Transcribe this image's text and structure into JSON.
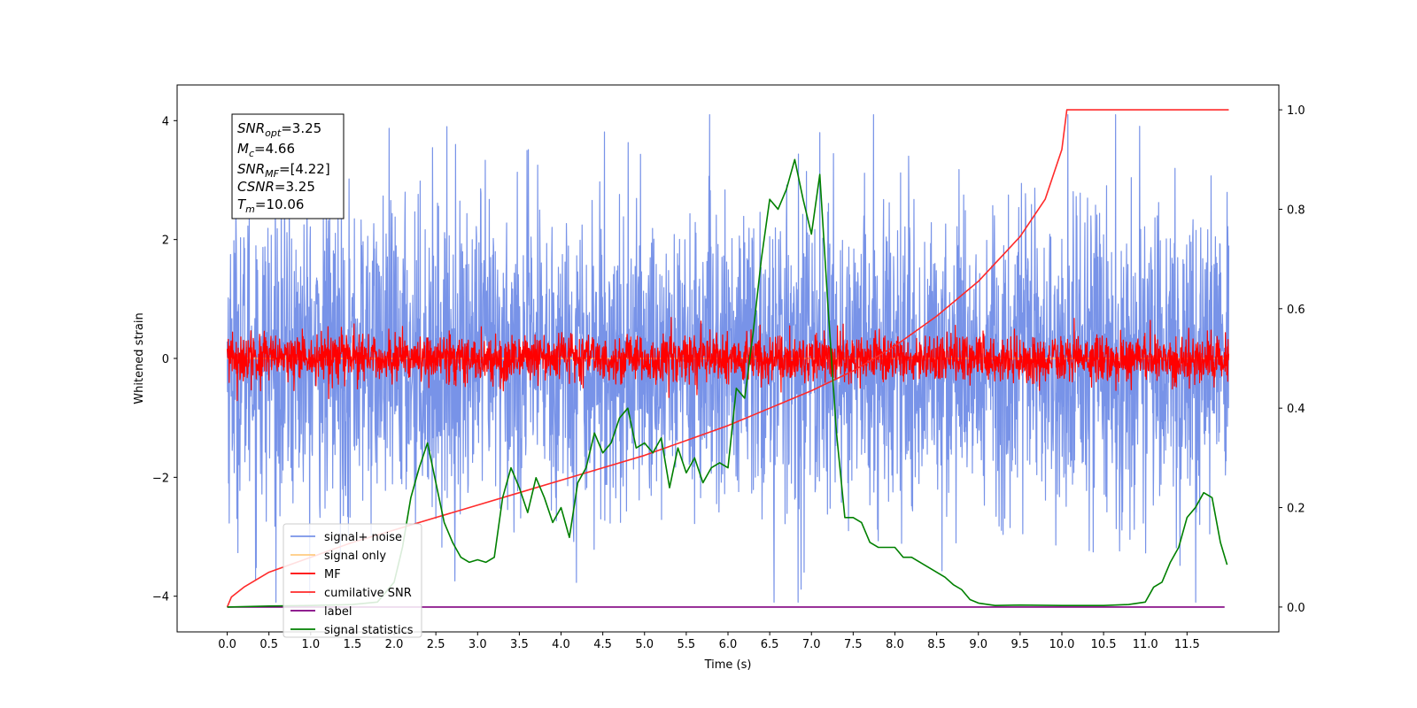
{
  "chart_data": {
    "type": "line",
    "title": "",
    "xlabel": "Time (s)",
    "ylabel": "Whitened strain",
    "xlim": [
      -0.6,
      12.6
    ],
    "ylim": [
      -4.6,
      4.6
    ],
    "y2lim": [
      -0.05,
      1.05
    ],
    "x_ticks": [
      0.0,
      0.5,
      1.0,
      1.5,
      2.0,
      2.5,
      3.0,
      3.5,
      4.0,
      4.5,
      5.0,
      5.5,
      6.0,
      6.5,
      7.0,
      7.5,
      8.0,
      8.5,
      9.0,
      9.5,
      10.0,
      10.5,
      11.0,
      11.5
    ],
    "x_tick_labels": [
      "0.0",
      "0.5",
      "1.0",
      "1.5",
      "2.0",
      "2.5",
      "3.0",
      "3.5",
      "4.0",
      "4.5",
      "5.0",
      "5.5",
      "6.0",
      "6.5",
      "7.0",
      "7.5",
      "8.0",
      "8.5",
      "9.0",
      "9.5",
      "10.0",
      "10.5",
      "11.0",
      "11.5"
    ],
    "y_ticks": [
      -4,
      -2,
      0,
      2,
      4
    ],
    "y_tick_labels": [
      "−4",
      "−2",
      "0",
      "2",
      "4"
    ],
    "y2_ticks": [
      0.0,
      0.2,
      0.4,
      0.6,
      0.8,
      1.0
    ],
    "y2_tick_labels": [
      "0.0",
      "0.2",
      "0.4",
      "0.6",
      "0.8",
      "1.0"
    ],
    "grid": false,
    "legend_position": "lower-left",
    "annotation": {
      "snr_opt": {
        "base": "SNR",
        "sub": "opt",
        "value": "=3.25"
      },
      "mc": {
        "base": "M",
        "sub": "c",
        "value": "=4.66"
      },
      "snr_mf": {
        "base": "SNR",
        "sub": "MF",
        "value": "=[4.22]"
      },
      "csnr": {
        "base": "CSNR",
        "sub": "",
        "value": "=3.25"
      },
      "tm": {
        "base": "T",
        "sub": "m",
        "value": "=10.06"
      }
    },
    "series": [
      {
        "name": "signal+ noise",
        "color": "#7893e8",
        "axis": "left",
        "kind": "noise",
        "t_range": [
          0.0,
          12.0
        ],
        "sigma": 1.3,
        "peak_envelope": 4.1
      },
      {
        "name": "signal only",
        "color": "#ffcc80",
        "axis": "left",
        "kind": "flat",
        "t_range": [
          0.0,
          12.0
        ],
        "value": 0.0
      },
      {
        "name": "MF",
        "color": "#ff0000",
        "axis": "left",
        "kind": "noise",
        "t_range": [
          0.0,
          12.0
        ],
        "sigma": 0.2,
        "peak_envelope": 0.8
      },
      {
        "name": "cumilative SNR",
        "color": "#ff2a2a",
        "axis": "right",
        "kind": "curve",
        "x": [
          0.0,
          0.05,
          0.2,
          0.5,
          1.0,
          1.5,
          2.0,
          2.5,
          3.0,
          3.5,
          4.0,
          4.5,
          5.0,
          5.5,
          6.0,
          6.5,
          7.0,
          7.5,
          8.0,
          8.5,
          9.0,
          9.5,
          9.8,
          10.0,
          10.06,
          12.0
        ],
        "y": [
          0.0,
          0.02,
          0.04,
          0.07,
          0.1,
          0.13,
          0.155,
          0.18,
          0.205,
          0.23,
          0.255,
          0.28,
          0.305,
          0.335,
          0.365,
          0.4,
          0.435,
          0.475,
          0.525,
          0.585,
          0.655,
          0.745,
          0.82,
          0.92,
          1.0,
          1.0
        ]
      },
      {
        "name": "label",
        "color": "#800080",
        "axis": "right",
        "kind": "curve",
        "x": [
          0.0,
          11.95
        ],
        "y": [
          0.0,
          0.0
        ]
      },
      {
        "name": "signal statistics",
        "color": "#008000",
        "axis": "right",
        "kind": "curve",
        "x": [
          0.0,
          0.5,
          1.0,
          1.5,
          1.8,
          2.0,
          2.1,
          2.2,
          2.3,
          2.4,
          2.5,
          2.6,
          2.7,
          2.8,
          2.9,
          3.0,
          3.1,
          3.2,
          3.3,
          3.4,
          3.5,
          3.6,
          3.7,
          3.8,
          3.9,
          4.0,
          4.1,
          4.2,
          4.3,
          4.4,
          4.5,
          4.6,
          4.7,
          4.8,
          4.9,
          5.0,
          5.1,
          5.2,
          5.3,
          5.4,
          5.5,
          5.6,
          5.7,
          5.8,
          5.9,
          6.0,
          6.1,
          6.2,
          6.3,
          6.4,
          6.5,
          6.6,
          6.7,
          6.8,
          6.9,
          7.0,
          7.1,
          7.2,
          7.3,
          7.4,
          7.5,
          7.6,
          7.7,
          7.8,
          7.9,
          8.0,
          8.1,
          8.2,
          8.3,
          8.4,
          8.5,
          8.6,
          8.7,
          8.8,
          8.9,
          9.0,
          9.2,
          9.5,
          10.0,
          10.5,
          10.8,
          11.0,
          11.1,
          11.2,
          11.3,
          11.4,
          11.5,
          11.6,
          11.7,
          11.8,
          11.9,
          11.98
        ],
        "y": [
          0.0,
          0.002,
          0.003,
          0.005,
          0.01,
          0.05,
          0.12,
          0.22,
          0.28,
          0.33,
          0.25,
          0.17,
          0.13,
          0.1,
          0.09,
          0.095,
          0.09,
          0.1,
          0.22,
          0.28,
          0.24,
          0.19,
          0.26,
          0.22,
          0.17,
          0.2,
          0.14,
          0.25,
          0.28,
          0.35,
          0.31,
          0.33,
          0.38,
          0.4,
          0.32,
          0.33,
          0.31,
          0.34,
          0.24,
          0.32,
          0.27,
          0.3,
          0.25,
          0.28,
          0.29,
          0.28,
          0.44,
          0.42,
          0.55,
          0.7,
          0.82,
          0.8,
          0.84,
          0.9,
          0.82,
          0.75,
          0.87,
          0.6,
          0.35,
          0.18,
          0.18,
          0.17,
          0.13,
          0.12,
          0.12,
          0.12,
          0.1,
          0.1,
          0.09,
          0.08,
          0.07,
          0.06,
          0.045,
          0.035,
          0.015,
          0.008,
          0.003,
          0.004,
          0.003,
          0.003,
          0.005,
          0.01,
          0.04,
          0.05,
          0.09,
          0.12,
          0.18,
          0.2,
          0.23,
          0.22,
          0.13,
          0.085
        ]
      }
    ]
  }
}
